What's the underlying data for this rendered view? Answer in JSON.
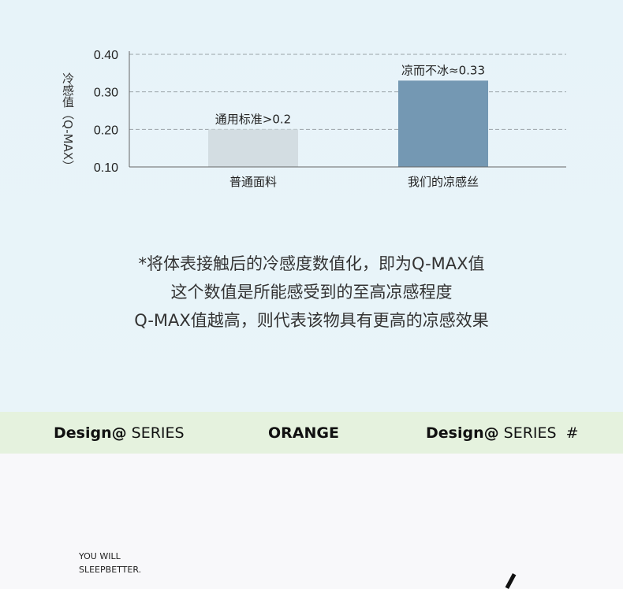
{
  "chart_data": {
    "type": "bar",
    "ylabel": "冷感值（Q-MAX）",
    "categories": [
      "普通面料",
      "我们的凉感丝"
    ],
    "values": [
      0.2,
      0.33
    ],
    "data_labels": [
      "通用标准>0.2",
      "凉而不冰≈0.33"
    ],
    "colors": [
      "#d3dde2",
      "#7498b3"
    ],
    "ylim": [
      0.1,
      0.4
    ],
    "yticks": [
      "0.10",
      "0.20",
      "0.30",
      "0.40"
    ],
    "grid": "dashed horizontal"
  },
  "notes": [
    "*将体表接触后的冷感度数值化，即为Q-MAX值",
    "这个数值是所能感受到的至高凉感程度",
    "Q-MAX值越高，则代表该物具有更高的凉感效果"
  ],
  "band": {
    "left_bold": "Design@",
    "left": " SERIES",
    "center": "ORANGE",
    "right_bold": "Design@",
    "right": " SERIES  #"
  },
  "tagline": [
    "YOU WILL",
    "SLEEPBETTER."
  ]
}
